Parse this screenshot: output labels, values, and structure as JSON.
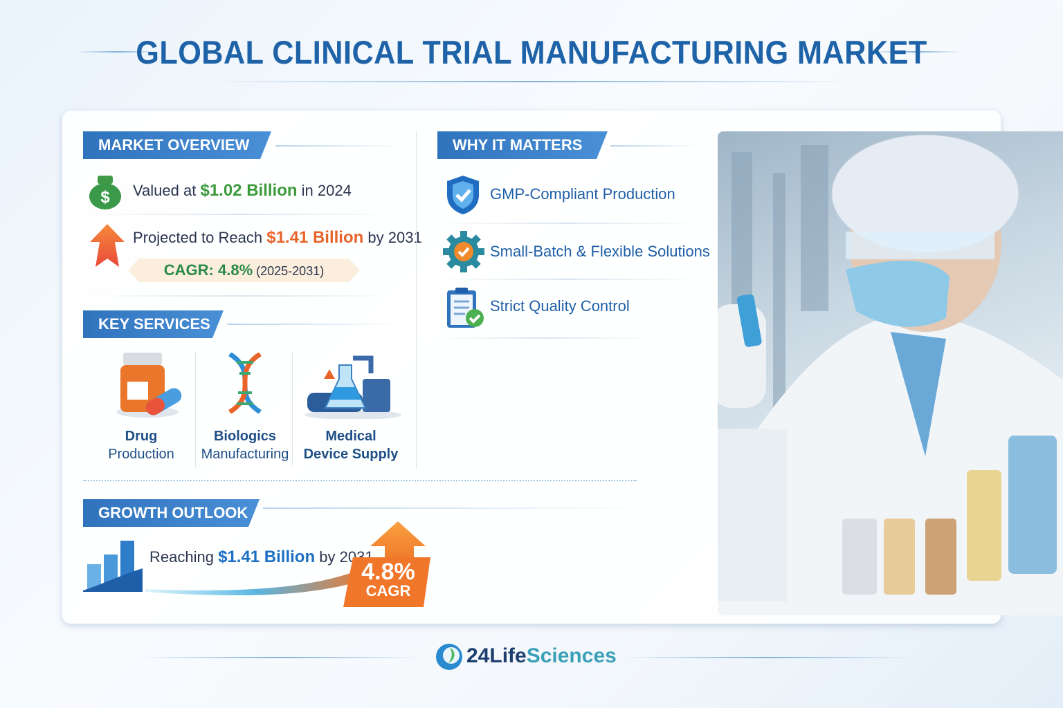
{
  "title": "GLOBAL CLINICAL TRIAL MANUFACTURING MARKET",
  "market_overview": {
    "header": "MARKET OVERVIEW",
    "valued_prefix": "Valued at",
    "valued_amount": "$1.02 Billion",
    "valued_suffix": "in 2024",
    "projected_prefix": "Projected to Reach",
    "projected_amount": "$1.41 Billion",
    "projected_suffix": "by 2031",
    "cagr_label": "CAGR: 4.8%",
    "cagr_period": "(2025-2031)"
  },
  "key_services": {
    "header": "KEY SERVICES",
    "items": [
      {
        "line1": "Drug",
        "line2": "Production",
        "icon": "pill-bottle-icon"
      },
      {
        "line1": "Biologics",
        "line2": "Manufacturing",
        "icon": "dna-icon"
      },
      {
        "line1": "Medical",
        "line2": "Device Supply",
        "icon": "lab-equipment-icon"
      }
    ]
  },
  "why_it_matters": {
    "header": "WHY IT MATTERS",
    "items": [
      {
        "label": "GMP-Compliant Production",
        "icon": "shield-check-icon"
      },
      {
        "label": "Small-Batch & Flexible Solutions",
        "icon": "gear-check-icon"
      },
      {
        "label": "Strict Quality Control",
        "icon": "clipboard-check-icon"
      }
    ]
  },
  "growth_outlook": {
    "header": "GROWTH OUTLOOK",
    "prefix": "Reaching",
    "amount": "$1.41 Billion",
    "suffix": "by 2031",
    "badge_value": "4.8%",
    "badge_label": "CAGR"
  },
  "footer": {
    "logo_part1": "24Life",
    "logo_part2": "Sciences"
  },
  "colors": {
    "primary": "#1e62a8",
    "green": "#3c9a3c",
    "orange": "#e8642a"
  }
}
